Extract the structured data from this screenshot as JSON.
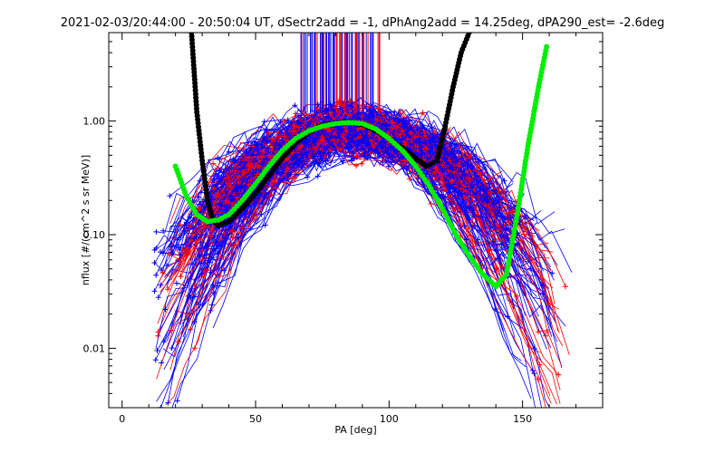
{
  "chart_data": {
    "type": "line",
    "title": "2021-02-03/20:44:00 - 20:50:04 UT, dSectr2add = -1, dPhAng2add = 14.25deg, dPA290_est= -2.6deg",
    "xlabel": "PA [deg]",
    "ylabel": "nflux [#/(cm^2 s sr MeV)]",
    "xlim": [
      -5,
      180
    ],
    "ylim": [
      0.003,
      6.0
    ],
    "yscale": "log",
    "x_ticks": [
      0,
      50,
      100,
      150
    ],
    "y_ticks": [
      {
        "value": 0.01,
        "label": "0.01"
      },
      {
        "value": 0.1,
        "label": "0.10"
      },
      {
        "value": 1.0,
        "label": "1.00"
      }
    ],
    "grid": false,
    "legend": "none",
    "colors": {
      "red": "#ff0000",
      "blue": "#0000ff",
      "black": "#000000",
      "green": "#00ee00"
    },
    "series": [
      {
        "color": "black",
        "style": "thick-dots",
        "x": [
          26,
          28,
          30,
          32,
          34,
          36,
          40,
          45,
          50,
          55,
          60,
          65,
          70,
          75,
          80,
          85,
          90,
          95,
          100,
          105,
          110,
          114,
          118,
          121,
          124,
          127,
          130
        ],
        "y": [
          6.0,
          1.2,
          0.45,
          0.2,
          0.135,
          0.12,
          0.13,
          0.17,
          0.23,
          0.33,
          0.47,
          0.64,
          0.8,
          0.92,
          0.96,
          0.98,
          0.93,
          0.82,
          0.7,
          0.58,
          0.47,
          0.4,
          0.45,
          0.9,
          2.0,
          4.0,
          6.0
        ]
      },
      {
        "color": "green",
        "style": "thick-dots",
        "x": [
          20,
          24,
          28,
          32,
          36,
          40,
          45,
          50,
          55,
          60,
          65,
          70,
          75,
          80,
          85,
          90,
          95,
          100,
          105,
          110,
          115,
          120,
          125,
          130,
          135,
          140,
          144,
          148,
          152,
          156,
          159
        ],
        "y": [
          0.4,
          0.22,
          0.15,
          0.13,
          0.135,
          0.15,
          0.2,
          0.28,
          0.4,
          0.55,
          0.7,
          0.82,
          0.9,
          0.95,
          0.97,
          0.95,
          0.85,
          0.7,
          0.55,
          0.4,
          0.27,
          0.17,
          0.1,
          0.065,
          0.045,
          0.035,
          0.045,
          0.15,
          0.6,
          2.0,
          4.5
        ]
      }
    ]
  }
}
